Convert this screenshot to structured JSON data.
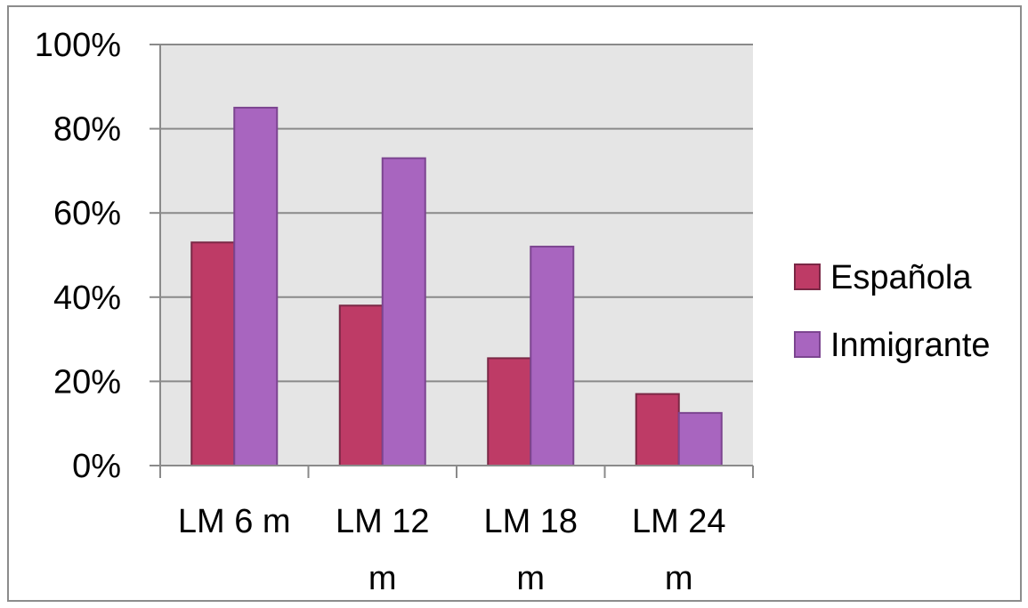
{
  "chart_data": {
    "type": "bar",
    "categories": [
      [
        "LM 6 m"
      ],
      [
        "LM 12",
        "m"
      ],
      [
        "LM 18",
        "m"
      ],
      [
        "LM 24",
        "m"
      ]
    ],
    "series": [
      {
        "name": "Española",
        "color": "#be3b66",
        "values": [
          53,
          38,
          25.5,
          17
        ]
      },
      {
        "name": "Inmigrante",
        "color": "#a865bf",
        "values": [
          85,
          73,
          52,
          12.5
        ]
      }
    ],
    "y_ticks": [
      "0%",
      "20%",
      "40%",
      "60%",
      "80%",
      "100%"
    ],
    "ylim": [
      0,
      100
    ],
    "grid": true,
    "legend_position": "right",
    "plot_background": "#e5e5e5"
  }
}
